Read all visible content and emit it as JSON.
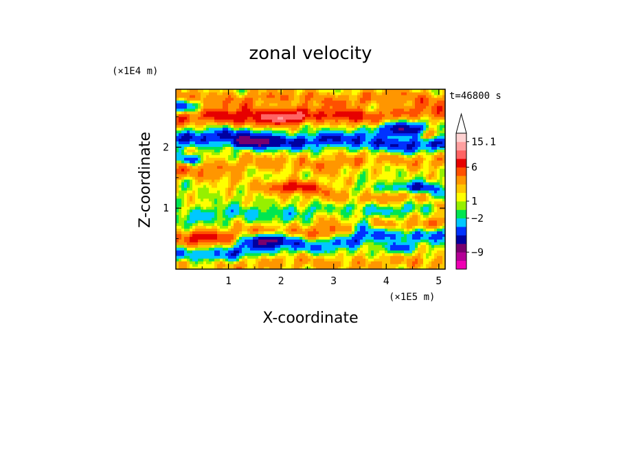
{
  "chart_data": {
    "type": "heatmap",
    "title": "zonal velocity",
    "xlabel": "X-coordinate",
    "ylabel": "Z-coordinate",
    "x_unit_label": "(×1E5 m)",
    "y_unit_label": "(×1E4 m)",
    "time_label": "t=46800 s",
    "xlim": [
      0,
      5.12
    ],
    "ylim": [
      0,
      2.95
    ],
    "x_ticks": [
      1,
      2,
      3,
      4,
      5
    ],
    "x_tick_labels": [
      "1",
      "2",
      "3",
      "4",
      "5"
    ],
    "y_ticks": [
      1,
      2
    ],
    "y_tick_labels": [
      "1",
      "2"
    ],
    "colorbar": {
      "colors": [
        "#f000b4",
        "#b40096",
        "#78006e",
        "#0000a0",
        "#0032ff",
        "#00c8ff",
        "#00e650",
        "#96f000",
        "#ffff00",
        "#ffc800",
        "#ff9600",
        "#ff5000",
        "#e60000",
        "#ff6464",
        "#ffa0a0",
        "#ffd2d2"
      ],
      "tick_labels": [
        "15.1",
        "6",
        "1",
        "−2",
        "−9"
      ],
      "tick_level_index": [
        15,
        12,
        8,
        6,
        2
      ],
      "extend_max": true
    },
    "bands": [
      {
        "z": 2.8,
        "amp": 3.2,
        "slope": 0.0
      },
      {
        "z": 2.5,
        "amp": 4.2,
        "slope": 0.02
      },
      {
        "z": 2.12,
        "amp": -6.2,
        "slope": -0.03
      },
      {
        "z": 1.75,
        "amp": 2.5,
        "slope": 0.03
      },
      {
        "z": 1.35,
        "amp": -3.2,
        "slope": -0.05
      },
      {
        "z": 1.32,
        "amp": 4.5,
        "slope": -0.08
      },
      {
        "z": 0.95,
        "amp": -2.6,
        "slope": 0.04
      },
      {
        "z": 0.62,
        "amp": 3.5,
        "slope": 0.06
      },
      {
        "z": 0.42,
        "amp": -5.2,
        "slope": 0.08
      },
      {
        "z": 0.1,
        "amp": 2.2,
        "slope": 0.0
      }
    ],
    "features": [
      {
        "x": 0.2,
        "z": 2.68,
        "v": -7.0,
        "rx": 0.25,
        "rz": 0.1
      },
      {
        "x": 1.5,
        "z": 2.55,
        "v": 5.0,
        "rx": 0.8,
        "rz": 0.12
      },
      {
        "x": 2.15,
        "z": 2.48,
        "v": 6.0,
        "rx": 0.35,
        "rz": 0.1
      },
      {
        "x": 3.3,
        "z": 2.55,
        "v": 3.5,
        "rx": 0.4,
        "rz": 0.1
      },
      {
        "x": 4.3,
        "z": 2.3,
        "v": -9.0,
        "rx": 0.5,
        "rz": 0.12
      },
      {
        "x": 1.45,
        "z": 2.08,
        "v": -8.0,
        "rx": 0.45,
        "rz": 0.1
      },
      {
        "x": 0.25,
        "z": 1.8,
        "v": -7.0,
        "rx": 0.22,
        "rz": 0.08
      },
      {
        "x": 2.25,
        "z": 1.35,
        "v": 6.5,
        "rx": 0.4,
        "rz": 0.1
      },
      {
        "x": 4.6,
        "z": 1.35,
        "v": -6.0,
        "rx": 0.35,
        "rz": 0.08
      },
      {
        "x": 4.8,
        "z": 2.2,
        "v": 6.0,
        "rx": 0.2,
        "rz": 0.1
      },
      {
        "x": 1.7,
        "z": 0.5,
        "v": -8.0,
        "rx": 0.45,
        "rz": 0.1
      },
      {
        "x": 3.5,
        "z": 0.72,
        "v": -5.0,
        "rx": 0.3,
        "rz": 0.12
      },
      {
        "x": 0.5,
        "z": 0.55,
        "v": 5.0,
        "rx": 0.4,
        "rz": 0.1
      },
      {
        "x": 4.2,
        "z": 0.35,
        "v": -6.0,
        "rx": 0.25,
        "rz": 0.08
      },
      {
        "x": 2.9,
        "z": 1.1,
        "v": 1.5,
        "rx": 0.4,
        "rz": 0.6
      }
    ]
  }
}
